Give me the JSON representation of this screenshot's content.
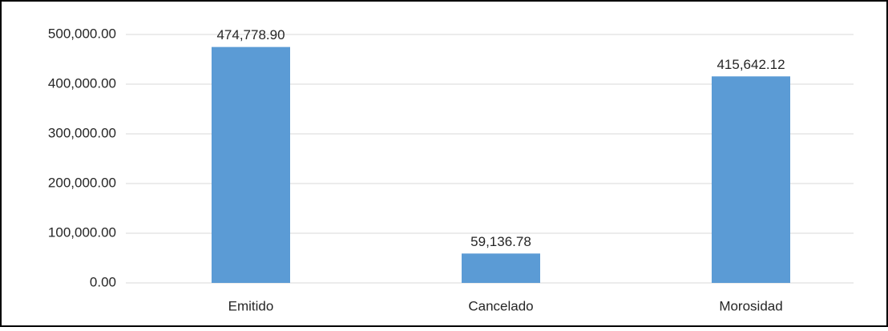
{
  "chart_data": {
    "type": "bar",
    "categories": [
      "Emitido",
      "Cancelado",
      "Morosidad"
    ],
    "values": [
      474778.9,
      59136.78,
      415642.12
    ],
    "value_labels": [
      "474,778.90",
      "59,136.78",
      "415,642.12"
    ],
    "color": "#5b9bd5",
    "ylim": [
      0,
      500000
    ],
    "yticks": [
      {
        "value": 0,
        "label": "0.00"
      },
      {
        "value": 100000,
        "label": "100,000.00"
      },
      {
        "value": 200000,
        "label": "200,000.00"
      },
      {
        "value": 300000,
        "label": "300,000.00"
      },
      {
        "value": 400000,
        "label": "400,000.00"
      },
      {
        "value": 500000,
        "label": "500,000.00"
      }
    ],
    "grid": true
  }
}
